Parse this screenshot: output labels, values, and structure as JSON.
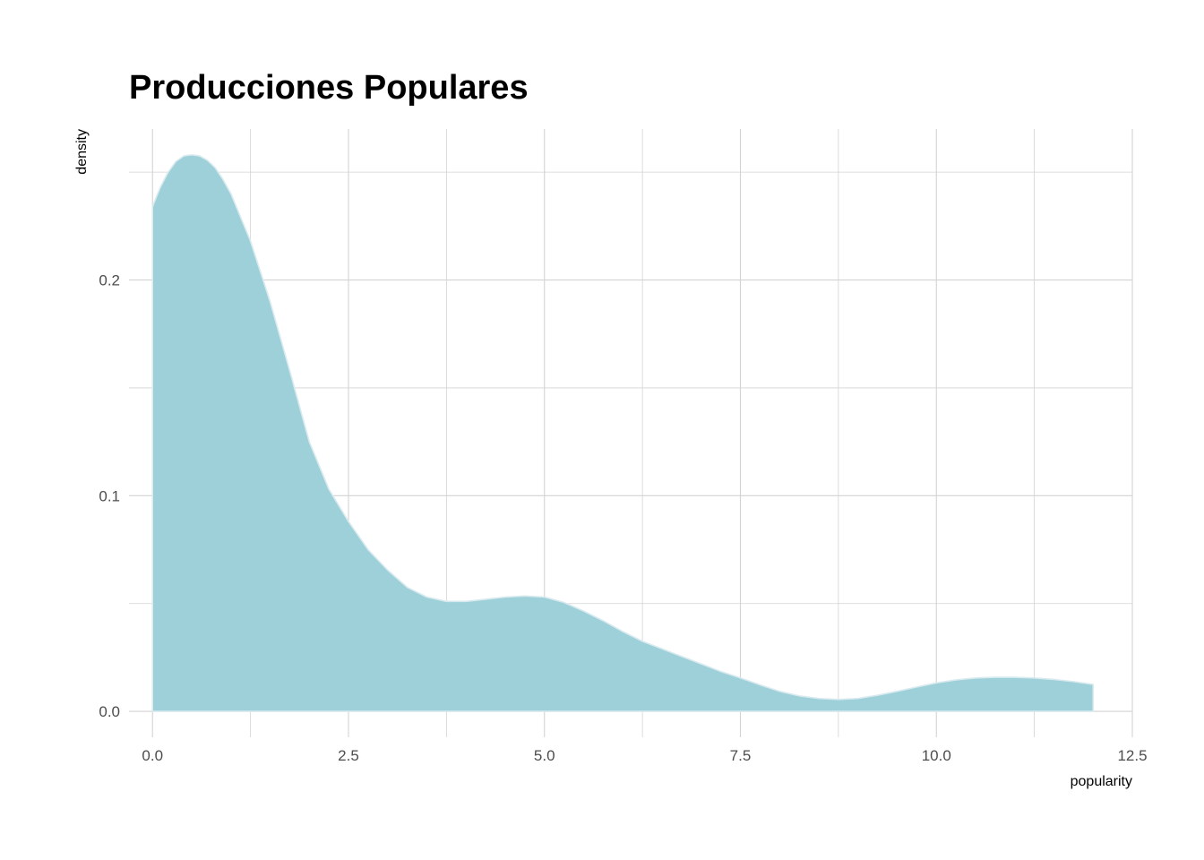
{
  "chart_data": {
    "type": "area",
    "title": "Producciones Populares",
    "xlabel": "popularity",
    "ylabel": "density",
    "xlim": [
      -0.3,
      12.5
    ],
    "ylim": [
      -0.012,
      0.27
    ],
    "x_ticks": [
      0.0,
      2.5,
      5.0,
      7.5,
      10.0,
      12.5
    ],
    "x_tick_labels": [
      "0.0",
      "2.5",
      "5.0",
      "7.5",
      "10.0",
      "12.5"
    ],
    "y_ticks": [
      0.0,
      0.1,
      0.2
    ],
    "y_tick_labels": [
      "0.0",
      "0.1",
      "0.2"
    ],
    "grid": true,
    "legend": "none",
    "colors": {
      "fill": "#9dd0d9",
      "outline": "#d9eaef",
      "grid": "#d3d3d3",
      "background": "#ffffff"
    },
    "series": [
      {
        "x": [
          0.0,
          0.1,
          0.2,
          0.3,
          0.4,
          0.5,
          0.6,
          0.7,
          0.8,
          0.9,
          1.0,
          1.25,
          1.5,
          1.75,
          2.0,
          2.25,
          2.5,
          2.75,
          3.0,
          3.25,
          3.5,
          3.75,
          4.0,
          4.25,
          4.5,
          4.75,
          5.0,
          5.25,
          5.5,
          5.75,
          6.0,
          6.25,
          6.5,
          6.75,
          7.0,
          7.25,
          7.5,
          7.75,
          8.0,
          8.25,
          8.5,
          8.75,
          9.0,
          9.25,
          9.5,
          9.75,
          10.0,
          10.25,
          10.5,
          10.75,
          11.0,
          11.25,
          11.5,
          11.75,
          12.0
        ],
        "y": [
          0.234,
          0.243,
          0.25,
          0.255,
          0.2575,
          0.258,
          0.2575,
          0.2555,
          0.252,
          0.2465,
          0.24,
          0.218,
          0.19,
          0.158,
          0.125,
          0.103,
          0.088,
          0.075,
          0.0655,
          0.0575,
          0.053,
          0.051,
          0.051,
          0.052,
          0.053,
          0.0535,
          0.053,
          0.0505,
          0.0465,
          0.042,
          0.037,
          0.0325,
          0.029,
          0.0255,
          0.022,
          0.0185,
          0.0155,
          0.0123,
          0.0093,
          0.0072,
          0.006,
          0.0055,
          0.006,
          0.0075,
          0.0093,
          0.0113,
          0.0132,
          0.0146,
          0.0155,
          0.0158,
          0.0158,
          0.0155,
          0.0148,
          0.0138,
          0.0125
        ]
      }
    ]
  }
}
